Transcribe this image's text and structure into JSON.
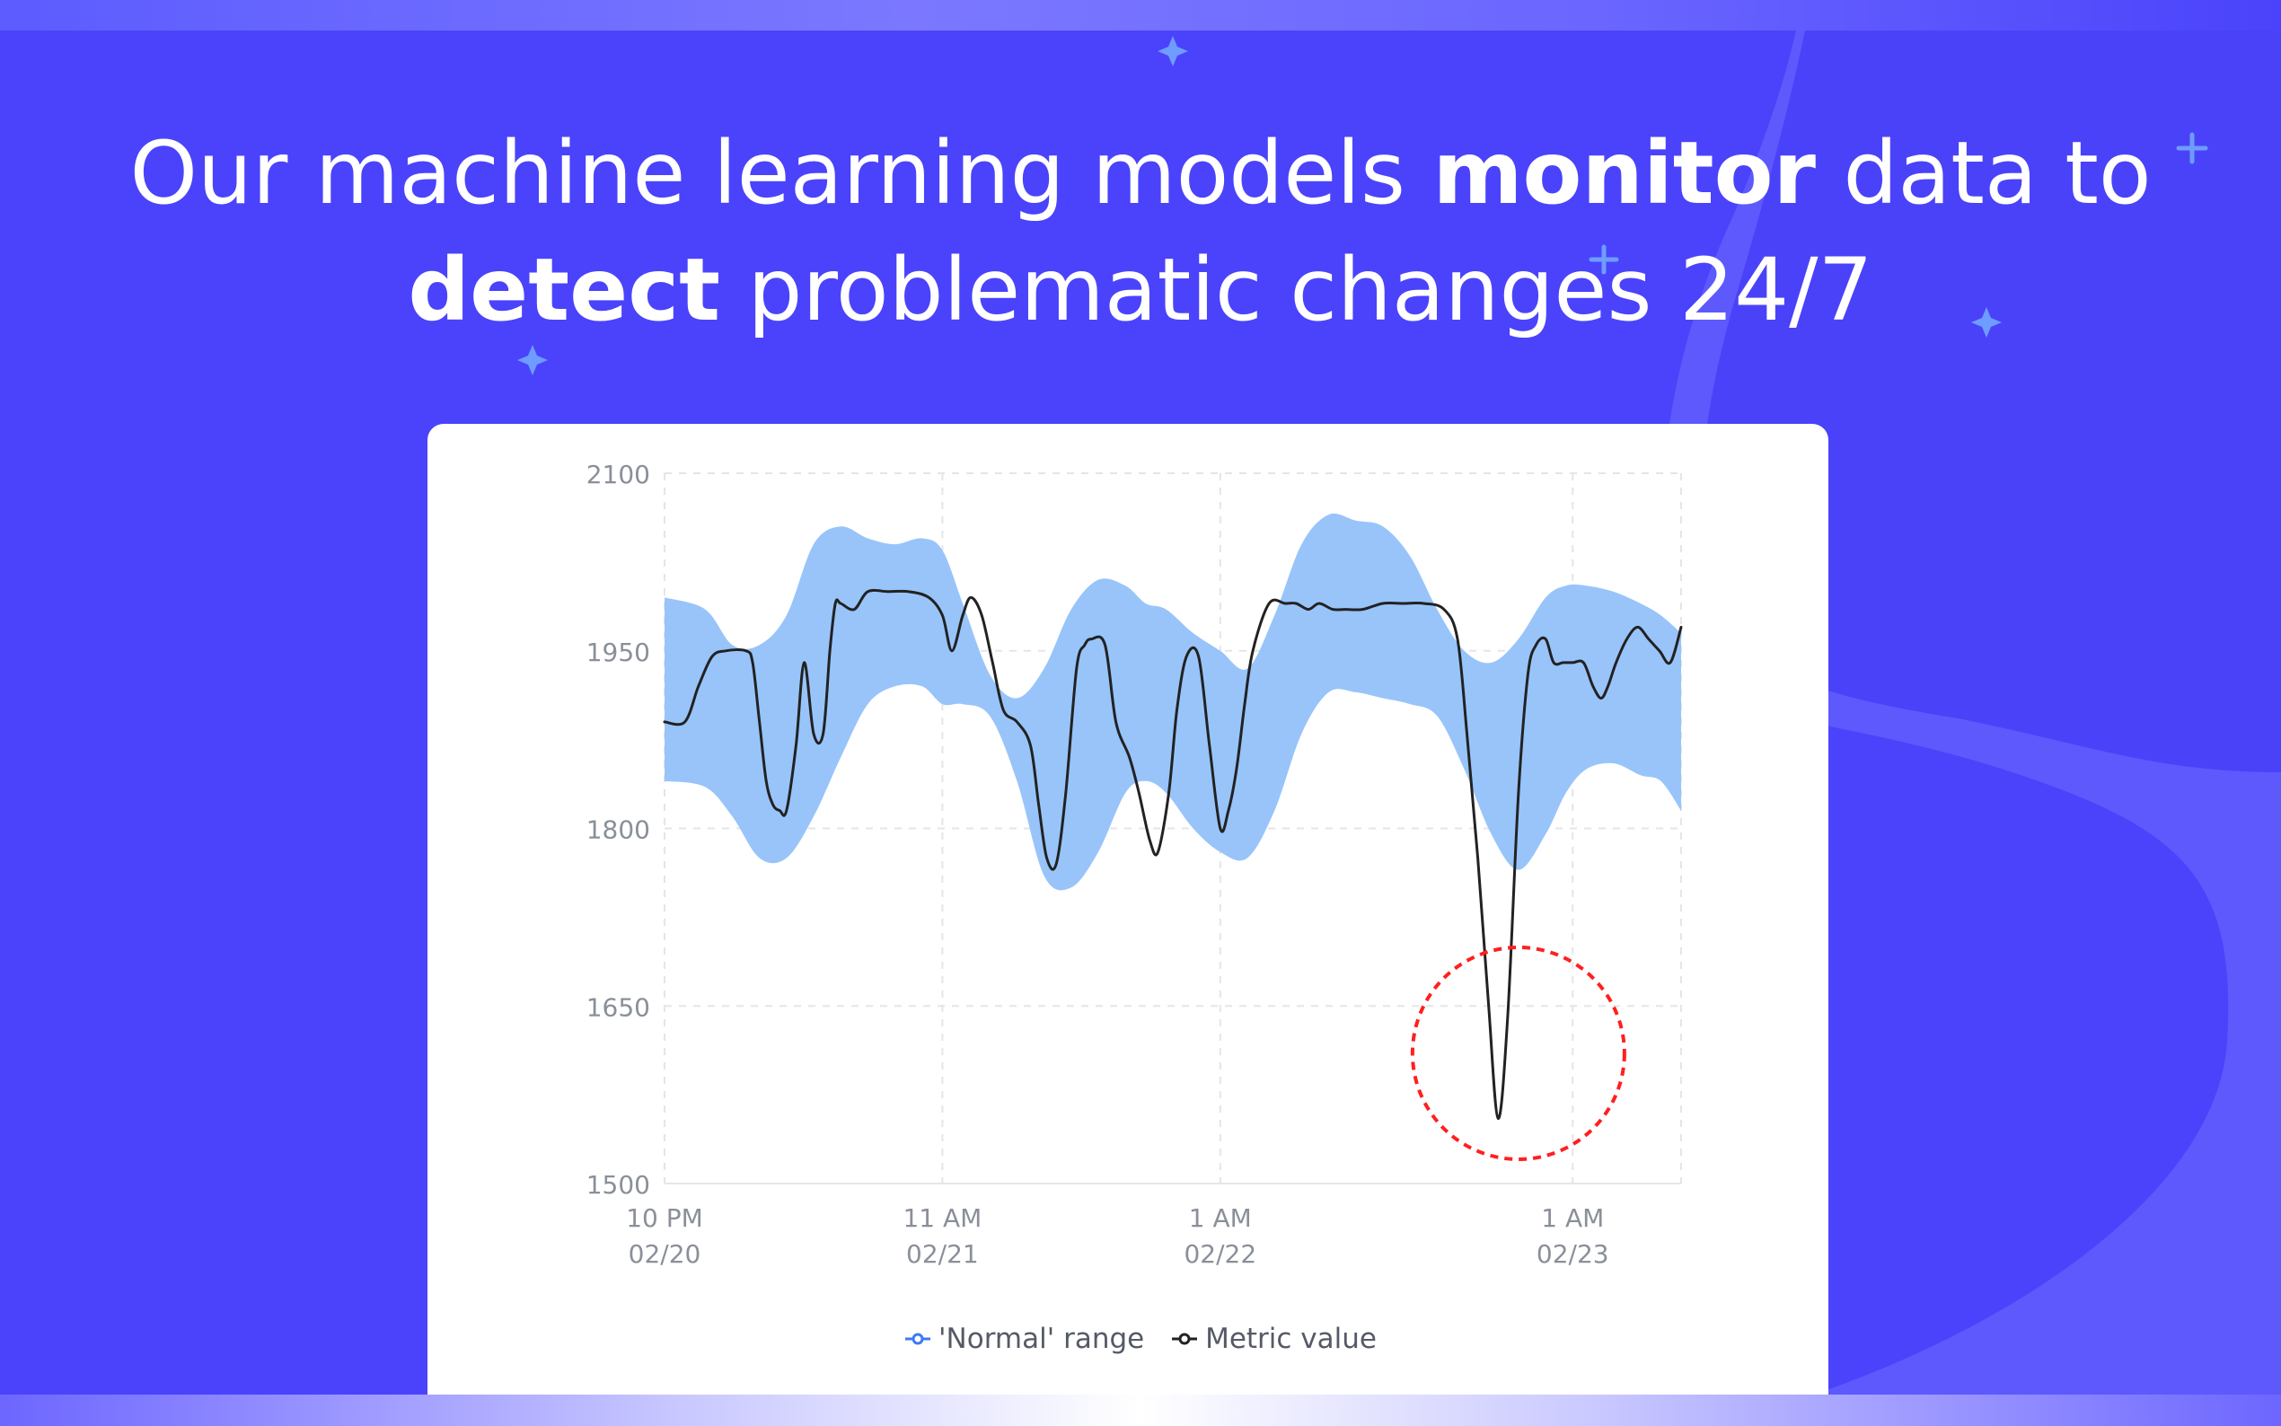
{
  "headline": {
    "line1_pre": "Our machine learning models ",
    "line1_bold": "monitor",
    "line1_post": " data to",
    "line2_bold": "detect",
    "line2_post": " problematic changes 24/7"
  },
  "colors": {
    "background": "#4a43fb",
    "band": "#98c4fa",
    "metric_line": "#222222",
    "anomaly_circle": "#ff1f1f"
  },
  "chart_data": {
    "type": "area",
    "ylim": [
      1500,
      2100
    ],
    "y_ticks": [
      "2100",
      "1950",
      "1800",
      "1650",
      "1500"
    ],
    "y_tick_values": [
      2100,
      1950,
      1800,
      1650,
      1500
    ],
    "x_range": [
      0,
      75
    ],
    "x_ticks": [
      {
        "x": 0,
        "line1": "10 PM",
        "line2": "02/20"
      },
      {
        "x": 20.5,
        "line1": "11 AM",
        "line2": "02/21"
      },
      {
        "x": 41,
        "line1": "1 AM",
        "line2": "02/22"
      },
      {
        "x": 67,
        "line1": "1 AM",
        "line2": "02/23"
      }
    ],
    "grid": true,
    "legend_position": "bottom-center",
    "legend": [
      "'Normal' range",
      "Metric value"
    ],
    "series": [
      {
        "name": "'Normal' range",
        "kind": "band",
        "x": [
          0,
          3,
          5,
          7,
          9,
          11,
          13,
          15,
          17,
          19,
          20.5,
          22,
          24,
          26,
          28,
          30,
          32,
          34,
          35.5,
          37,
          39,
          41,
          43,
          45,
          47,
          49,
          51,
          53,
          55,
          57,
          59,
          61,
          63,
          65,
          66.5,
          68,
          70,
          72,
          73.5,
          75
        ],
        "upper": [
          1995,
          1985,
          1955,
          1955,
          1980,
          2040,
          2055,
          2045,
          2040,
          2045,
          2035,
          1990,
          1930,
          1910,
          1935,
          1985,
          2010,
          2005,
          1990,
          1985,
          1965,
          1950,
          1935,
          1980,
          2040,
          2065,
          2060,
          2055,
          2030,
          1985,
          1950,
          1940,
          1960,
          1995,
          2005,
          2005,
          2000,
          1990,
          1980,
          1965
        ],
        "lower": [
          1840,
          1835,
          1810,
          1775,
          1775,
          1810,
          1860,
          1905,
          1920,
          1920,
          1905,
          1905,
          1895,
          1840,
          1760,
          1750,
          1780,
          1830,
          1840,
          1830,
          1800,
          1780,
          1775,
          1815,
          1880,
          1915,
          1915,
          1910,
          1905,
          1895,
          1850,
          1795,
          1765,
          1795,
          1830,
          1850,
          1855,
          1845,
          1840,
          1815
        ]
      },
      {
        "name": "Metric value",
        "kind": "line",
        "x": [
          0,
          1.5,
          2.5,
          3.5,
          4.5,
          6,
          6.5,
          7,
          7.5,
          8,
          8.5,
          9,
          9.7,
          10.3,
          11,
          11.7,
          12.2,
          12.6,
          13,
          14,
          15,
          16.5,
          18,
          19.5,
          20.5,
          21.2,
          22,
          22.6,
          23.4,
          24.2,
          25,
          26,
          27,
          27.6,
          28.2,
          28.9,
          29.6,
          30.4,
          31,
          31.5,
          32.5,
          33.3,
          34.3,
          35,
          35.8,
          36.4,
          37.2,
          37.8,
          38.5,
          39.4,
          40.2,
          41,
          41.6,
          42.2,
          42.8,
          43.4,
          44.6,
          45.8,
          46.6,
          47.5,
          48.3,
          49.3,
          50.2,
          51.5,
          53,
          54.5,
          56,
          57.5,
          58.5,
          59.2,
          60,
          60.8,
          61.5,
          62.2,
          63,
          63.7,
          64.3,
          65,
          65.6,
          66.3,
          67,
          67.8,
          68.5,
          69.1,
          69.6,
          70.2,
          71,
          71.8,
          72.6,
          73.4,
          74.2,
          75
        ],
        "y": [
          1890,
          1890,
          1920,
          1945,
          1950,
          1950,
          1940,
          1890,
          1840,
          1820,
          1815,
          1815,
          1870,
          1940,
          1880,
          1880,
          1950,
          1990,
          1990,
          1985,
          2000,
          2000,
          2000,
          1995,
          1980,
          1950,
          1980,
          1995,
          1980,
          1940,
          1900,
          1890,
          1870,
          1820,
          1775,
          1770,
          1830,
          1935,
          1955,
          1960,
          1955,
          1890,
          1860,
          1830,
          1790,
          1780,
          1830,
          1900,
          1945,
          1945,
          1870,
          1800,
          1815,
          1850,
          1905,
          1950,
          1990,
          1990,
          1990,
          1985,
          1990,
          1985,
          1985,
          1985,
          1990,
          1990,
          1990,
          1985,
          1960,
          1880,
          1775,
          1650,
          1555,
          1640,
          1830,
          1930,
          1955,
          1960,
          1940,
          1940,
          1940,
          1940,
          1920,
          1910,
          1920,
          1940,
          1960,
          1970,
          1960,
          1950,
          1940,
          1970
        ]
      }
    ],
    "annotation": {
      "type": "circle",
      "x": 63,
      "y": 1610,
      "note": "anomaly"
    }
  }
}
